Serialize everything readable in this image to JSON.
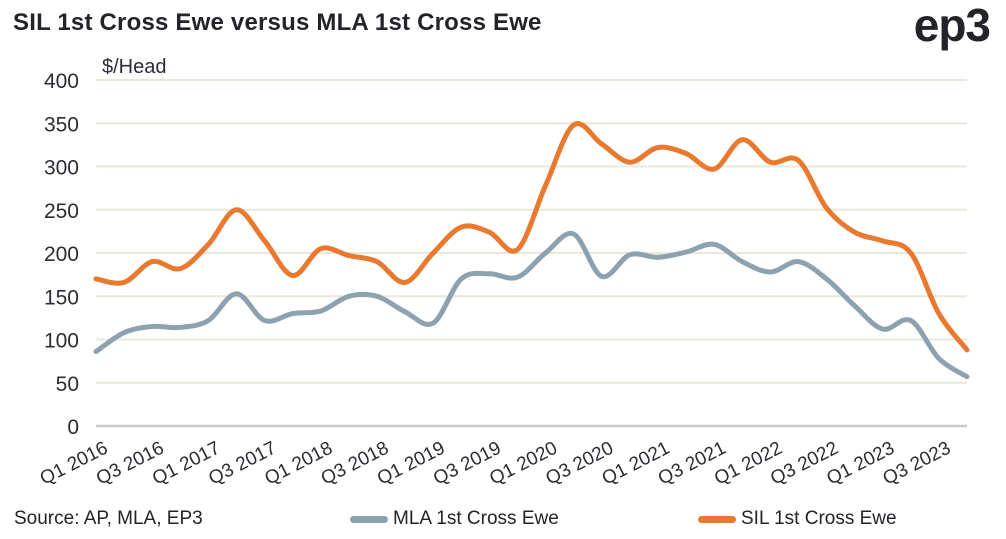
{
  "header": {
    "title": "SIL 1st Cross Ewe versus MLA 1st Cross Ewe",
    "logo": "ep3"
  },
  "footer": {
    "source": "Source: AP, MLA, EP3"
  },
  "chart_data": {
    "type": "line",
    "title": "SIL 1st Cross Ewe versus MLA 1st Cross Ewe",
    "unit_label": "$/Head",
    "ylim": [
      0,
      400
    ],
    "y_ticks": [
      0,
      50,
      100,
      150,
      200,
      250,
      300,
      350,
      400
    ],
    "grid": "horizontal-on",
    "legend_position": "bottom",
    "categories": [
      "Q1 2016",
      "Q2 2016",
      "Q3 2016",
      "Q4 2016",
      "Q1 2017",
      "Q2 2017",
      "Q3 2017",
      "Q4 2017",
      "Q1 2018",
      "Q2 2018",
      "Q3 2018",
      "Q4 2018",
      "Q1 2019",
      "Q2 2019",
      "Q3 2019",
      "Q4 2019",
      "Q1 2020",
      "Q2 2020",
      "Q3 2020",
      "Q4 2020",
      "Q1 2021",
      "Q2 2021",
      "Q3 2021",
      "Q4 2021",
      "Q1 2022",
      "Q2 2022",
      "Q3 2022",
      "Q4 2022",
      "Q1 2023",
      "Q2 2023",
      "Q3 2023",
      "Q4 2023"
    ],
    "x_tick_labels": [
      "Q1 2016",
      "Q3 2016",
      "Q1 2017",
      "Q3 2017",
      "Q1 2018",
      "Q3 2018",
      "Q1 2019",
      "Q3 2019",
      "Q1 2020",
      "Q3 2020",
      "Q1 2021",
      "Q3 2021",
      "Q1 2022",
      "Q3 2022",
      "Q1 2023",
      "Q3 2023"
    ],
    "x_tick_every": 2,
    "series": [
      {
        "name": "MLA 1st Cross Ewe",
        "color": "#8CA2B0",
        "values": [
          86,
          108,
          115,
          114,
          122,
          153,
          122,
          130,
          133,
          150,
          150,
          132,
          119,
          170,
          176,
          172,
          200,
          222,
          173,
          198,
          195,
          201,
          210,
          190,
          178,
          190,
          170,
          139,
          112,
          122,
          78,
          57
        ]
      },
      {
        "name": "SIL 1st Cross Ewe",
        "color": "#E8792F",
        "values": [
          170,
          166,
          190,
          182,
          210,
          250,
          214,
          174,
          205,
          197,
          190,
          166,
          200,
          230,
          224,
          204,
          278,
          348,
          326,
          305,
          322,
          315,
          297,
          331,
          305,
          307,
          252,
          224,
          214,
          200,
          130,
          88
        ]
      }
    ]
  },
  "colors": {
    "text": "#26222A",
    "tick_text": "#2F2B33",
    "grid": "#EBE8DB",
    "zero_axis": "#C9C9C9",
    "background": "#FFFFFF"
  }
}
